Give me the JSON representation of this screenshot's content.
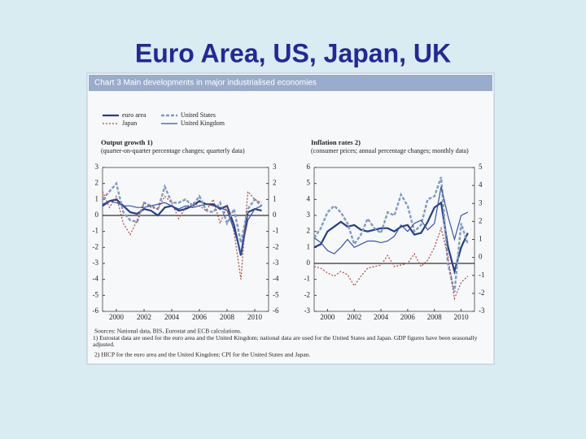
{
  "slide_title": "Euro Area, US, Japan, UK",
  "panel_title": "Chart 3 Main developments in major industrialised economies",
  "notes": [
    "Sources: National data, BIS, Eurostat and ECB calculations.",
    "1) Eurostat data are used for the euro area and the United Kingdom; national data are used for the United States and Japan. GDP figures have been seasonally adjusted.",
    "2) HICP for the euro area and the United Kingdom; CPI for the United States and Japan."
  ],
  "chart_data": [
    {
      "type": "line",
      "title": "Output growth 1)",
      "subtitle": "(quarter-on-quarter percentage changes; quarterly data)",
      "x": [
        1999.0,
        1999.5,
        2000.0,
        2000.5,
        2001.0,
        2001.5,
        2002.0,
        2002.5,
        2003.0,
        2003.5,
        2004.0,
        2004.5,
        2005.0,
        2005.5,
        2006.0,
        2006.5,
        2007.0,
        2007.5,
        2008.0,
        2008.5,
        2009.0,
        2009.5,
        2010.0,
        2010.5
      ],
      "series": [
        {
          "name": "euro area",
          "color": "#243f8c",
          "values": [
            0.6,
            0.9,
            1.0,
            0.6,
            0.2,
            0.1,
            0.4,
            0.3,
            0.0,
            0.5,
            0.6,
            0.3,
            0.4,
            0.6,
            0.9,
            0.7,
            0.7,
            0.4,
            0.6,
            -0.6,
            -2.5,
            0.2,
            0.4,
            0.3
          ]
        },
        {
          "name": "United States",
          "color": "#7f9cc0",
          "values": [
            1.0,
            1.5,
            2.0,
            0.2,
            -0.3,
            -0.4,
            0.8,
            0.6,
            0.4,
            1.8,
            0.8,
            0.8,
            1.0,
            0.6,
            1.2,
            0.3,
            0.2,
            0.8,
            -0.5,
            0.4,
            -1.7,
            0.4,
            1.0,
            0.6
          ]
        },
        {
          "name": "Japan",
          "color": "#b0453a",
          "values": [
            1.5,
            0.5,
            1.2,
            -0.5,
            -1.2,
            -0.3,
            0.8,
            0.5,
            0.4,
            1.2,
            0.8,
            -0.2,
            0.5,
            0.8,
            0.6,
            0.3,
            1.0,
            -0.5,
            0.6,
            -1.0,
            -4.0,
            1.5,
            1.0,
            0.8
          ]
        },
        {
          "name": "United Kingdom",
          "color": "#3553a8",
          "values": [
            0.7,
            0.9,
            0.8,
            0.6,
            0.6,
            0.5,
            0.5,
            0.6,
            0.7,
            0.8,
            0.6,
            0.4,
            0.6,
            0.5,
            0.6,
            0.7,
            0.6,
            0.5,
            0.3,
            -0.9,
            -2.4,
            -0.3,
            0.4,
            0.6
          ]
        }
      ],
      "xlim": [
        1999,
        2011
      ],
      "xticks": [
        2000,
        2002,
        2004,
        2006,
        2008,
        2010
      ],
      "ylim": [
        -6,
        3
      ],
      "yticks": [
        3,
        2,
        1,
        0,
        -1,
        -2,
        -3,
        -4,
        -5,
        -6
      ],
      "y2lim": [
        -6,
        3
      ],
      "y2ticks": [
        3,
        2,
        1,
        0,
        -1,
        -2,
        -3,
        -4,
        -5,
        -6
      ]
    },
    {
      "type": "line",
      "title": "Inflation rates 2)",
      "subtitle": "(consumer prices; annual percentage changes; monthly data)",
      "x": [
        1999.0,
        1999.5,
        2000.0,
        2000.5,
        2001.0,
        2001.5,
        2002.0,
        2002.5,
        2003.0,
        2003.5,
        2004.0,
        2004.5,
        2005.0,
        2005.5,
        2006.0,
        2006.5,
        2007.0,
        2007.5,
        2008.0,
        2008.5,
        2009.0,
        2009.5,
        2010.0,
        2010.5
      ],
      "series": [
        {
          "color": "#243f8c",
          "values": [
            1.0,
            1.2,
            2.0,
            2.3,
            2.6,
            2.3,
            2.4,
            2.1,
            2.0,
            2.1,
            2.2,
            2.2,
            2.0,
            2.3,
            2.4,
            1.8,
            1.9,
            2.6,
            3.5,
            3.8,
            1.1,
            -0.5,
            1.0,
            1.9
          ]
        },
        {
          "color": "#7f9cc0",
          "values": [
            1.6,
            2.2,
            3.2,
            3.6,
            3.2,
            2.5,
            1.2,
            1.8,
            2.8,
            2.2,
            1.9,
            3.2,
            3.0,
            4.3,
            3.6,
            2.0,
            2.4,
            4.0,
            4.2,
            5.4,
            0.0,
            -1.8,
            2.5,
            1.2
          ]
        },
        {
          "color": "#b0453a",
          "values": [
            -0.2,
            -0.3,
            -0.6,
            -0.8,
            -0.5,
            -0.7,
            -1.4,
            -0.8,
            -0.3,
            -0.2,
            -0.1,
            0.5,
            -0.2,
            -0.1,
            0.0,
            0.6,
            -0.2,
            0.2,
            1.0,
            2.2,
            0.5,
            -2.2,
            -1.2,
            -0.8
          ]
        },
        {
          "color": "#3553a8",
          "values": [
            1.6,
            1.3,
            0.8,
            0.6,
            1.0,
            1.5,
            1.0,
            1.2,
            1.4,
            1.4,
            1.3,
            1.4,
            1.7,
            2.4,
            2.0,
            2.5,
            2.7,
            2.1,
            2.5,
            4.8,
            3.0,
            1.5,
            3.0,
            3.2
          ]
        }
      ],
      "xlim": [
        1999,
        2011
      ],
      "xticks": [
        2000,
        2002,
        2004,
        2006,
        2008,
        2010
      ],
      "ylim": [
        -3,
        6
      ],
      "yticks": [
        6,
        5,
        4,
        3,
        2,
        1,
        0,
        -1,
        -2,
        -3
      ],
      "y2lim": [
        -3,
        5
      ],
      "y2ticks": [
        5,
        4,
        3,
        2,
        1,
        0,
        -1,
        -2,
        -3
      ]
    }
  ]
}
